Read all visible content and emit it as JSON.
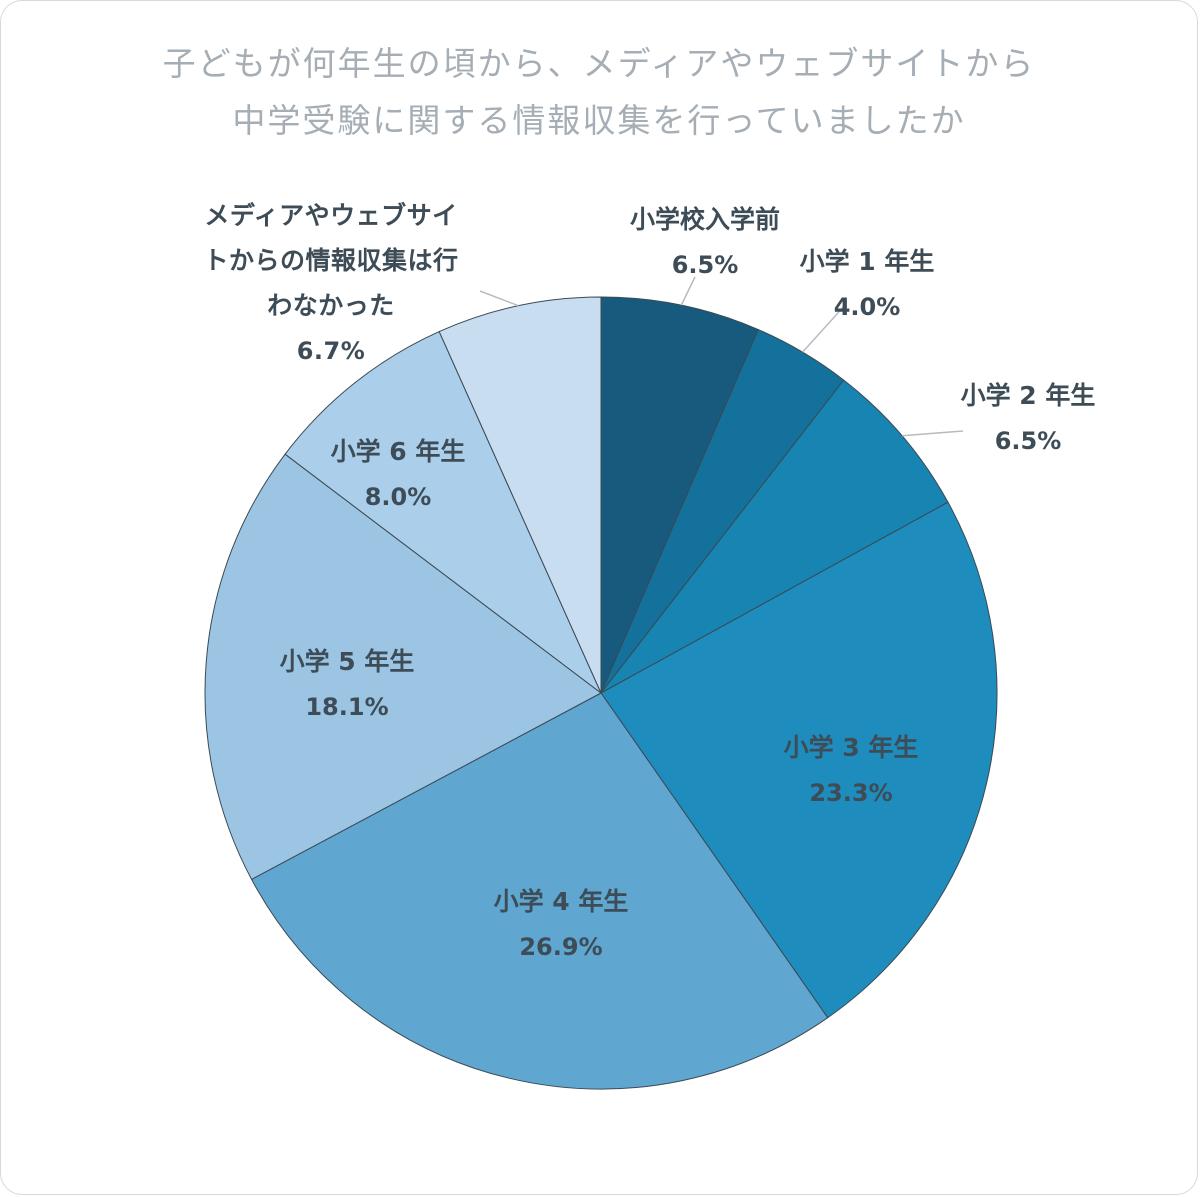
{
  "title": {
    "line1": "子どもが何年生の頃から、メディアやウェブサイトから",
    "line2": "中学受験に関する情報収集を行っていましたか"
  },
  "chart_data": {
    "type": "pie",
    "title": "子どもが何年生の頃から、メディアやウェブサイトから中学受験に関する情報収集を行っていましたか",
    "start_angle_deg": -90,
    "direction": "clockwise",
    "outline_color": "#3a4a54",
    "leader_line_color": "#b6bbc1",
    "slices": [
      {
        "label": "小学校入学前",
        "value": 6.5,
        "pct": "6.5%",
        "color": "#175a7d"
      },
      {
        "label": "小学 1 年生",
        "value": 4.0,
        "pct": "4.0%",
        "color": "#14719c"
      },
      {
        "label": "小学 2 年生",
        "value": 6.5,
        "pct": "6.5%",
        "color": "#1784b1"
      },
      {
        "label": "小学 3 年生",
        "value": 23.3,
        "pct": "23.3%",
        "color": "#1e8cbc"
      },
      {
        "label": "小学 4 年生",
        "value": 26.9,
        "pct": "26.9%",
        "color": "#5fa7d1"
      },
      {
        "label": "小学 5 年生",
        "value": 18.1,
        "pct": "18.1%",
        "color": "#9cc5e4"
      },
      {
        "label": "小学 6 年生",
        "value": 8.0,
        "pct": "8.0%",
        "color": "#abceea"
      },
      {
        "label": "メディアやウェブサイトからの情報収集は行わなかった",
        "value": 6.7,
        "pct": "6.7%",
        "color": "#c9ddf0"
      }
    ]
  }
}
